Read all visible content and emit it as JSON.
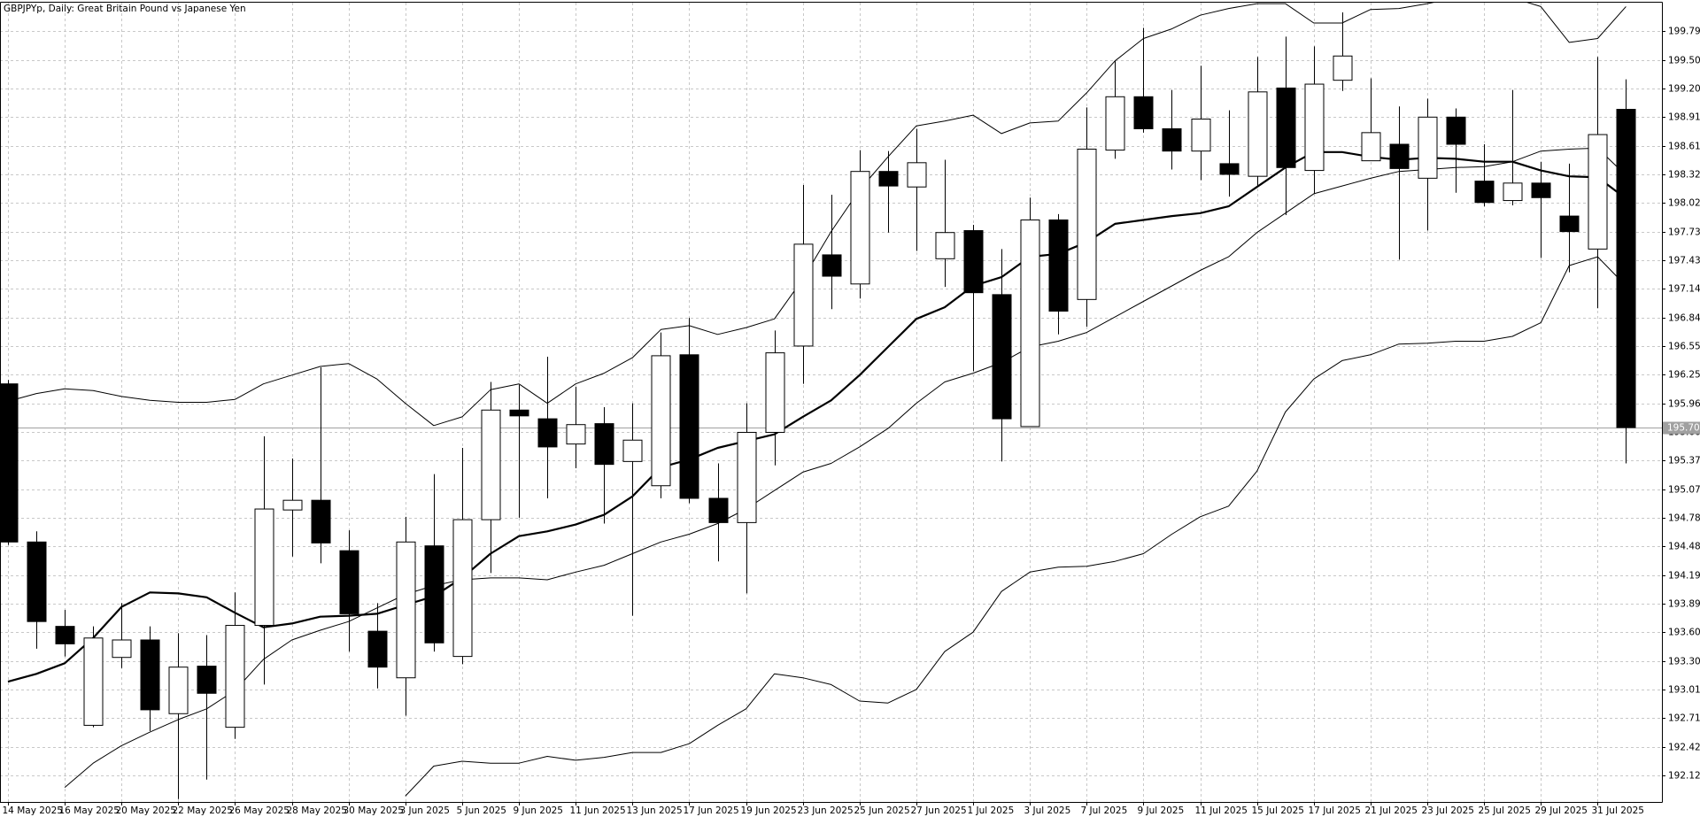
{
  "chart_data": {
    "type": "candlestick",
    "title": "GBPJPYp, Daily:  Great Britain Pound vs Japanese Yen",
    "categories": [
      "14 May 2025",
      null,
      "16 May 2025",
      null,
      "20 May 2025",
      null,
      "22 May 2025",
      null,
      "26 May 2025",
      null,
      "28 May 2025",
      null,
      "30 May 2025",
      null,
      "3 Jun 2025",
      null,
      "5 Jun 2025",
      null,
      "9 Jun 2025",
      null,
      "11 Jun 2025",
      null,
      "13 Jun 2025",
      null,
      "17 Jun 2025",
      null,
      "19 Jun 2025",
      null,
      "23 Jun 2025",
      null,
      "25 Jun 2025",
      null,
      "27 Jun 2025",
      null,
      "1 Jul 2025",
      null,
      "3 Jul 2025",
      null,
      "7 Jul 2025",
      null,
      "9 Jul 2025",
      null,
      "11 Jul 2025",
      null,
      "15 Jul 2025",
      null,
      "17 Jul 2025",
      null,
      "21 Jul 2025",
      null,
      "23 Jul 2025",
      null,
      "25 Jul 2025",
      null,
      "29 Jul 2025",
      null,
      "31 Jul 2025",
      null
    ],
    "open": [
      196.16,
      194.53,
      193.66,
      192.64,
      193.34,
      193.52,
      192.76,
      193.25,
      192.62,
      193.67,
      194.86,
      194.96,
      194.44,
      193.61,
      193.13,
      194.49,
      193.35,
      194.76,
      195.89,
      195.8,
      195.54,
      195.75,
      195.36,
      195.11,
      196.46,
      194.98,
      194.73,
      195.66,
      196.55,
      197.49,
      197.19,
      198.35,
      198.19,
      197.45,
      197.74,
      197.08,
      195.72,
      197.85,
      197.03,
      198.57,
      199.12,
      198.79,
      198.56,
      198.43,
      198.3,
      199.21,
      198.36,
      199.29,
      198.46,
      198.63,
      198.28,
      198.91,
      198.25,
      198.05,
      198.23,
      197.89,
      197.55,
      198.99
    ],
    "high": [
      196.2,
      194.64,
      193.83,
      193.66,
      193.9,
      193.66,
      193.59,
      193.57,
      194.01,
      195.62,
      195.39,
      196.33,
      194.65,
      193.9,
      194.79,
      195.23,
      195.5,
      196.18,
      196.15,
      196.44,
      196.13,
      195.92,
      195.96,
      196.69,
      196.84,
      195.34,
      195.96,
      196.71,
      198.21,
      198.11,
      198.57,
      198.56,
      198.79,
      198.47,
      197.8,
      197.55,
      198.08,
      197.91,
      199.01,
      199.49,
      199.83,
      199.19,
      199.44,
      198.98,
      199.53,
      199.74,
      199.64,
      199.99,
      199.31,
      199.02,
      199.1,
      199.0,
      198.63,
      199.19,
      198.45,
      198.43,
      199.53,
      199.3
    ],
    "low": [
      194.5,
      193.43,
      193.35,
      192.62,
      193.23,
      192.58,
      191.88,
      192.08,
      192.5,
      193.06,
      194.38,
      194.31,
      193.4,
      193.02,
      192.74,
      193.4,
      193.27,
      194.21,
      194.78,
      194.98,
      195.29,
      194.72,
      193.77,
      194.98,
      194.93,
      194.33,
      194.0,
      195.32,
      196.16,
      196.93,
      197.04,
      197.72,
      197.53,
      197.16,
      196.29,
      195.36,
      195.72,
      196.67,
      196.75,
      198.48,
      198.75,
      198.37,
      198.26,
      198.09,
      198.2,
      197.9,
      198.12,
      199.18,
      198.46,
      197.44,
      197.74,
      198.13,
      197.99,
      198.0,
      197.46,
      197.31,
      196.94,
      195.34
    ],
    "close": [
      194.53,
      193.71,
      193.48,
      193.54,
      193.52,
      192.8,
      193.24,
      192.97,
      193.67,
      194.87,
      194.96,
      194.52,
      193.79,
      193.24,
      194.53,
      193.49,
      194.76,
      195.89,
      195.83,
      195.51,
      195.74,
      195.33,
      195.58,
      196.45,
      194.98,
      194.73,
      195.66,
      196.48,
      197.6,
      197.27,
      198.35,
      198.2,
      198.44,
      197.72,
      197.1,
      195.8,
      197.85,
      196.91,
      198.58,
      199.12,
      198.79,
      198.56,
      198.89,
      198.32,
      199.17,
      198.39,
      199.25,
      199.54,
      198.75,
      198.38,
      198.91,
      198.63,
      198.03,
      198.23,
      198.08,
      197.73,
      198.73,
      195.71
    ],
    "up_color": "#ffffff",
    "down_color": "#000000",
    "lines": [
      {
        "color": "#000000",
        "values": [
          193.09,
          193.17,
          193.28,
          193.54,
          193.86,
          194.01,
          194.0,
          193.96,
          193.8,
          193.65,
          193.69,
          193.76,
          193.77,
          193.79,
          193.88,
          193.97,
          194.16,
          194.41,
          194.59,
          194.64,
          194.71,
          194.81,
          195.0,
          195.3,
          195.38,
          195.5,
          195.57,
          195.64,
          195.82,
          195.99,
          196.25,
          196.54,
          196.83,
          196.95,
          197.17,
          197.26,
          197.47,
          197.5,
          197.62,
          197.81,
          197.85,
          197.89,
          197.92,
          197.99,
          198.19,
          198.39,
          198.55,
          198.55,
          198.5,
          198.47,
          198.49,
          198.48,
          198.45,
          198.45,
          198.36,
          198.3,
          198.29,
          198.07
        ]
      },
      {
        "color": "#000000",
        "values": [
          195.98,
          196.06,
          196.11,
          196.09,
          196.03,
          195.99,
          195.97,
          195.97,
          196.0,
          196.16,
          196.25,
          196.34,
          196.37,
          196.21,
          195.96,
          195.73,
          195.82,
          196.1,
          196.16,
          195.96,
          196.16,
          196.27,
          196.43,
          196.72,
          196.76,
          196.67,
          196.74,
          196.83,
          197.24,
          197.73,
          198.16,
          198.5,
          198.82,
          198.87,
          198.93,
          198.74,
          198.85,
          198.87,
          199.16,
          199.49,
          199.72,
          199.82,
          199.96,
          200.03,
          200.08,
          200.08,
          199.88,
          199.88,
          200.02,
          200.03,
          200.08,
          200.14,
          200.14,
          200.14,
          200.05,
          199.68,
          199.72,
          200.05
        ]
      },
      {
        "color": "#000000",
        "values": [
          null,
          null,
          192.0,
          192.25,
          192.43,
          192.57,
          192.7,
          192.81,
          193.0,
          193.32,
          193.52,
          193.62,
          193.71,
          193.85,
          193.99,
          194.08,
          194.14,
          194.16,
          194.16,
          194.14,
          194.22,
          194.29,
          194.41,
          194.53,
          194.61,
          194.72,
          194.87,
          195.06,
          195.25,
          195.34,
          195.51,
          195.7,
          195.96,
          196.18,
          196.27,
          196.38,
          196.54,
          196.6,
          196.69,
          196.85,
          197.01,
          197.17,
          197.33,
          197.47,
          197.72,
          197.92,
          198.12,
          198.2,
          198.28,
          198.35,
          198.37,
          198.39,
          198.4,
          198.45,
          198.56,
          198.58,
          198.59,
          198.31
        ]
      },
      {
        "color": "#000000",
        "values": [
          null,
          null,
          null,
          null,
          null,
          null,
          null,
          null,
          null,
          null,
          null,
          null,
          null,
          null,
          191.91,
          192.22,
          192.27,
          192.25,
          192.25,
          192.32,
          192.28,
          192.31,
          192.36,
          192.36,
          192.45,
          192.64,
          192.81,
          193.17,
          193.13,
          193.06,
          192.89,
          192.87,
          193.01,
          193.4,
          193.6,
          194.02,
          194.22,
          194.27,
          194.28,
          194.33,
          194.41,
          194.61,
          194.79,
          194.9,
          195.26,
          195.87,
          196.21,
          196.4,
          196.46,
          196.57,
          196.58,
          196.6,
          196.6,
          196.65,
          196.79,
          197.38,
          197.47,
          197.17
        ]
      }
    ],
    "last_price": 195.707,
    "ylim": [
      191.85,
      200.09
    ],
    "yticks": [
      192.125,
      {
        "value": 192.42,
        "label": "192.420"
      },
      192.715,
      {
        "value": 193.01,
        "label": "193.010"
      },
      193.305,
      {
        "value": 193.6,
        "label": "193.600"
      },
      193.895,
      {
        "value": 194.19,
        "label": "194.190"
      },
      194.485,
      {
        "value": 194.78,
        "label": "194.780"
      },
      195.075,
      {
        "value": 195.37,
        "label": "195.370"
      },
      195.665,
      {
        "value": 195.96,
        "label": "195.960"
      },
      196.255,
      {
        "value": 196.55,
        "label": "196.550"
      },
      196.845,
      {
        "value": 197.14,
        "label": "197.140"
      },
      197.435,
      {
        "value": 197.73,
        "label": "197.730"
      },
      198.025,
      {
        "value": 198.32,
        "label": "198.320"
      },
      198.615,
      {
        "value": 198.91,
        "label": "198.910"
      },
      199.205,
      {
        "value": 199.5,
        "label": "199.500"
      },
      199.795
    ],
    "grid": true
  }
}
